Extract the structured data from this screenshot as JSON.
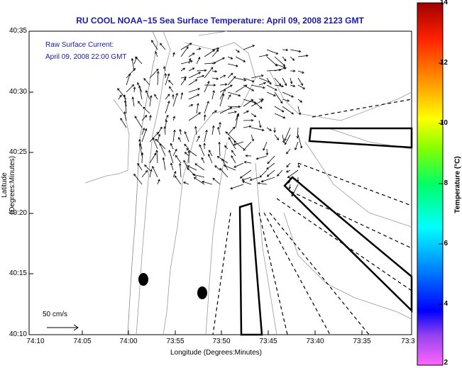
{
  "title": "RU COOL  NOAA−15  Sea Surface Temperature:  April 09, 2008 2123 GMT",
  "current_label_line1": "Raw Surface Current:",
  "current_label_line2": "April 09, 2008 22:00 GMT",
  "ylabel": "Latitude (Degrees:Minutes)",
  "xlabel": "Longitude (Degrees:Minutes)",
  "scale_label": "50 cm/s",
  "colorbar_label": "Temperature (°C)",
  "x_ticks": [
    "74:10",
    "74:05",
    "74:00",
    "73:55",
    "73:50",
    "73:45",
    "73:40",
    "73:35",
    "73:3"
  ],
  "y_ticks": [
    "40:35",
    "40:30",
    "40:25",
    "40:20",
    "40:15",
    "40:10"
  ],
  "colorbar_ticks": [
    "14",
    "12",
    "10",
    "8",
    "6",
    "4",
    "2"
  ],
  "colors": {
    "title": "#1a1aa8",
    "land": "#ffffff",
    "contour": "#999999"
  }
}
